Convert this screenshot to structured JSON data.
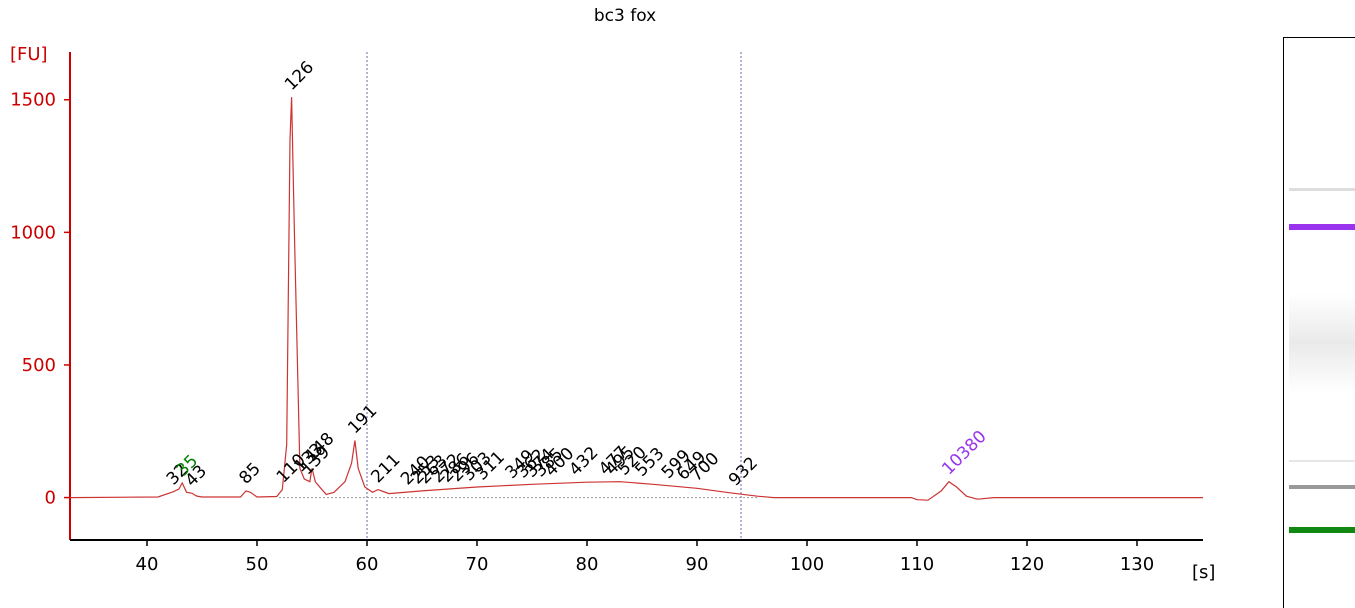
{
  "chart_data": {
    "type": "line",
    "title": "bc3 fox",
    "ylabel": "[FU]",
    "xlabel": "[s]",
    "xlim": [
      33,
      136
    ],
    "ylim": [
      -160,
      1680
    ],
    "xticks": [
      40,
      50,
      60,
      70,
      80,
      90,
      100,
      110,
      120,
      130
    ],
    "yticks": [
      0,
      500,
      1000,
      1500
    ],
    "region_markers_x": [
      60,
      94
    ],
    "series": [
      {
        "x": [
          33,
          41,
          42.4,
          42.9,
          43.2,
          43.6,
          44.1,
          44.5,
          45.0,
          48.5,
          49.0,
          49.4,
          50.0,
          51.8,
          52.3,
          52.7,
          53.0,
          53.15,
          53.4,
          53.9,
          54.3,
          54.8,
          55.0,
          55.3,
          55.8,
          56.3,
          57.0,
          58.0,
          58.6,
          58.9,
          59.2,
          59.8,
          60.5,
          61.0,
          62.0,
          65,
          70,
          75,
          80,
          83,
          86,
          90,
          93,
          95.5,
          97,
          109.5,
          110,
          111,
          112.2,
          112.9,
          113.6,
          114.5,
          115.5,
          117,
          136
        ],
        "y": [
          0,
          2,
          22,
          32,
          55,
          20,
          16,
          6,
          2,
          2,
          25,
          20,
          2,
          4,
          30,
          200,
          1350,
          1510,
          1000,
          110,
          70,
          60,
          110,
          60,
          35,
          12,
          20,
          60,
          130,
          215,
          110,
          40,
          20,
          30,
          15,
          25,
          40,
          50,
          58,
          60,
          50,
          35,
          18,
          5,
          0,
          0,
          -8,
          -10,
          25,
          60,
          40,
          5,
          -6,
          0,
          0
        ]
      }
    ],
    "peak_labels": [
      {
        "x": 42.4,
        "y": 22,
        "text": "32",
        "color": "#000000"
      },
      {
        "x": 43.3,
        "y": 55,
        "text": "35",
        "color": "#008000"
      },
      {
        "x": 44.1,
        "y": 16,
        "text": "43",
        "color": "#000000"
      },
      {
        "x": 49.0,
        "y": 25,
        "text": "85",
        "color": "#000000"
      },
      {
        "x": 52.4,
        "y": 30,
        "text": "110",
        "color": "#000000"
      },
      {
        "x": 53.15,
        "y": 1510,
        "text": "126",
        "color": "#000000"
      },
      {
        "x": 54.0,
        "y": 70,
        "text": "133",
        "color": "#000000"
      },
      {
        "x": 54.6,
        "y": 60,
        "text": "139",
        "color": "#000000"
      },
      {
        "x": 55.0,
        "y": 110,
        "text": "148",
        "color": "#000000"
      },
      {
        "x": 58.9,
        "y": 215,
        "text": "191",
        "color": "#000000"
      },
      {
        "x": 61.0,
        "y": 30,
        "text": "211",
        "color": "#000000"
      },
      {
        "x": 63.7,
        "y": 22,
        "text": "240",
        "color": "#000000"
      },
      {
        "x": 64.6,
        "y": 25,
        "text": "253",
        "color": "#000000"
      },
      {
        "x": 65.3,
        "y": 26,
        "text": "263",
        "color": "#000000"
      },
      {
        "x": 66.5,
        "y": 30,
        "text": "272",
        "color": "#000000"
      },
      {
        "x": 67.3,
        "y": 32,
        "text": "286",
        "color": "#000000"
      },
      {
        "x": 68.2,
        "y": 34,
        "text": "296",
        "color": "#000000"
      },
      {
        "x": 69.3,
        "y": 37,
        "text": "303",
        "color": "#000000"
      },
      {
        "x": 70.5,
        "y": 40,
        "text": "311",
        "color": "#000000"
      },
      {
        "x": 73.2,
        "y": 46,
        "text": "349",
        "color": "#000000"
      },
      {
        "x": 74.2,
        "y": 48,
        "text": "362",
        "color": "#000000"
      },
      {
        "x": 75.0,
        "y": 50,
        "text": "374",
        "color": "#000000"
      },
      {
        "x": 75.8,
        "y": 52,
        "text": "385",
        "color": "#000000"
      },
      {
        "x": 76.8,
        "y": 54,
        "text": "400",
        "color": "#000000"
      },
      {
        "x": 79.0,
        "y": 57,
        "text": "432",
        "color": "#000000"
      },
      {
        "x": 81.7,
        "y": 59,
        "text": "477",
        "color": "#000000"
      },
      {
        "x": 82.3,
        "y": 59,
        "text": "495",
        "color": "#000000"
      },
      {
        "x": 83.4,
        "y": 58,
        "text": "520",
        "color": "#000000"
      },
      {
        "x": 85.0,
        "y": 54,
        "text": "553",
        "color": "#000000"
      },
      {
        "x": 87.4,
        "y": 46,
        "text": "599",
        "color": "#000000"
      },
      {
        "x": 88.8,
        "y": 40,
        "text": "649",
        "color": "#000000"
      },
      {
        "x": 90.0,
        "y": 35,
        "text": "700",
        "color": "#000000"
      },
      {
        "x": 93.5,
        "y": 18,
        "text": "932",
        "color": "#000000"
      },
      {
        "x": 112.9,
        "y": 60,
        "text": "10380",
        "color": "#9933ee"
      }
    ]
  },
  "gel_bands": [
    {
      "name": "upper-marker",
      "color": "#9933ee"
    },
    {
      "name": "sample-band",
      "color": "#999999"
    },
    {
      "name": "lower-marker",
      "color": "#118811"
    }
  ]
}
